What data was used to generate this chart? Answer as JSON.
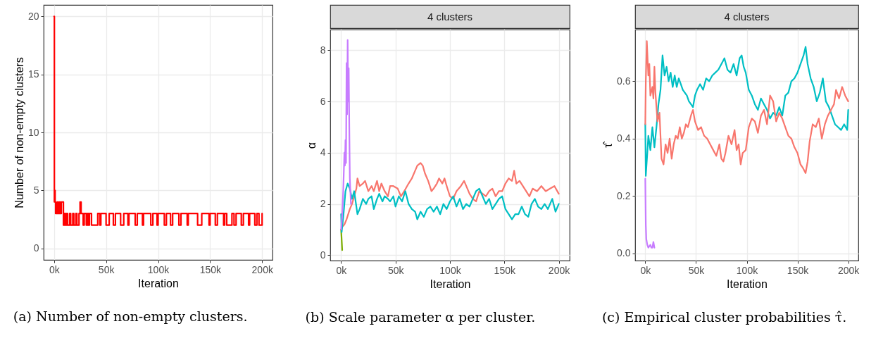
{
  "chart_data": [
    {
      "type": "step",
      "xlabel": "Iteration",
      "ylabel": "Number of non-empty clusters",
      "annotations": [
        "(a) Number of non-empty clusters."
      ],
      "xlim": [
        -10,
        210
      ],
      "xticks": [
        {
          "value": 0,
          "label": "0k"
        },
        {
          "value": 50,
          "label": "50k"
        },
        {
          "value": 100,
          "label": "100k"
        },
        {
          "value": 150,
          "label": "150k"
        },
        {
          "value": 200,
          "label": "200k"
        }
      ],
      "ylim": [
        -1,
        21
      ],
      "yticks": [
        0,
        5,
        10,
        15,
        20
      ],
      "grid": true,
      "series": [
        {
          "color": "#ff0000",
          "x": [
            0,
            0.3,
            0.6,
            1,
            1.5,
            3,
            4,
            5,
            6,
            7,
            9,
            10,
            11,
            12,
            13,
            15,
            16,
            18,
            19,
            21,
            22,
            24,
            25,
            26,
            28,
            29,
            31,
            32,
            33,
            34,
            36,
            42,
            44,
            45,
            50,
            53,
            57,
            59,
            64,
            67,
            71,
            72,
            78,
            80,
            85,
            86,
            93,
            95,
            99,
            100,
            106,
            108,
            112,
            114,
            120,
            122,
            128,
            129,
            138,
            142,
            149,
            150,
            155,
            157,
            163,
            164,
            166,
            170,
            171,
            173,
            175,
            180,
            182,
            187,
            188,
            193,
            195,
            197,
            200
          ],
          "values": [
            20,
            4,
            5,
            4,
            3,
            4,
            3,
            4,
            3,
            4,
            2,
            3,
            2,
            3,
            2,
            3,
            2,
            3,
            2,
            3,
            2,
            3,
            4,
            3,
            2,
            3,
            2,
            3,
            2,
            3,
            2,
            3,
            2,
            3,
            2,
            3,
            2,
            3,
            2,
            3,
            2,
            3,
            2,
            3,
            2,
            3,
            2,
            3,
            2,
            3,
            2,
            3,
            2,
            3,
            2,
            3,
            2,
            3,
            2,
            3,
            2,
            3,
            2,
            3,
            2,
            3,
            2,
            2,
            3,
            2,
            3,
            2,
            3,
            2,
            3,
            2,
            3,
            2,
            3
          ]
        }
      ]
    },
    {
      "type": "line",
      "subtitle": "4 clusters",
      "xlabel": "Iteration",
      "ylabel": "α",
      "annotations": [
        "(b) Scale parameter α per cluster."
      ],
      "xlim": [
        -10,
        210
      ],
      "xticks": [
        {
          "value": 0,
          "label": "0k"
        },
        {
          "value": 50,
          "label": "50k"
        },
        {
          "value": 100,
          "label": "100k"
        },
        {
          "value": 150,
          "label": "150k"
        },
        {
          "value": 200,
          "label": "200k"
        }
      ],
      "ylim": [
        -0.21,
        8.81
      ],
      "yticks": [
        0,
        2,
        4,
        6,
        8
      ],
      "grid": true,
      "series": [
        {
          "color": "#f8766d",
          "x": [
            0,
            1,
            3,
            5,
            8,
            10,
            12,
            14,
            15,
            17,
            20,
            22,
            25,
            28,
            30,
            33,
            35,
            37,
            40,
            43,
            45,
            48,
            52,
            55,
            58,
            62,
            65,
            68,
            70,
            73,
            75,
            77,
            80,
            83,
            85,
            88,
            90,
            93,
            95,
            97,
            100,
            103,
            106,
            110,
            113,
            115,
            118,
            121,
            124,
            127,
            130,
            133,
            136,
            139,
            142,
            145,
            148,
            151,
            154,
            157,
            159,
            161,
            164,
            167,
            170,
            173,
            176,
            180,
            184,
            188,
            192,
            196,
            200
          ],
          "values": [
            1.0,
            1.1,
            1.2,
            1.4,
            1.8,
            2.0,
            2.3,
            2.6,
            3.0,
            2.7,
            2.8,
            2.9,
            2.5,
            2.7,
            2.5,
            2.9,
            2.5,
            2.8,
            2.5,
            2.3,
            2.7,
            2.7,
            2.6,
            2.3,
            2.5,
            2.8,
            3.0,
            3.3,
            3.5,
            3.6,
            3.5,
            3.2,
            2.9,
            2.5,
            2.6,
            2.8,
            3.0,
            2.8,
            3.0,
            2.7,
            2.3,
            2.2,
            2.5,
            2.7,
            2.9,
            2.7,
            2.4,
            2.2,
            2.1,
            2.5,
            2.4,
            2.3,
            2.5,
            2.6,
            2.3,
            2.5,
            2.5,
            2.8,
            3.0,
            2.9,
            3.3,
            2.8,
            2.9,
            2.7,
            2.5,
            2.3,
            2.6,
            2.5,
            2.7,
            2.5,
            2.6,
            2.7,
            2.4
          ]
        },
        {
          "color": "#7cae00",
          "x": [
            0,
            0.5,
            1
          ],
          "values": [
            1.0,
            0.6,
            0.2
          ]
        },
        {
          "color": "#00bfc4",
          "x": [
            0,
            0.5,
            2,
            4,
            6,
            8,
            10,
            12,
            15,
            17,
            20,
            23,
            25,
            28,
            30,
            33,
            35,
            38,
            40,
            43,
            45,
            48,
            50,
            53,
            56,
            59,
            62,
            65,
            68,
            70,
            73,
            76,
            79,
            82,
            85,
            88,
            91,
            94,
            97,
            100,
            103,
            106,
            109,
            112,
            115,
            118,
            121,
            124,
            127,
            130,
            133,
            136,
            139,
            142,
            145,
            148,
            151,
            154,
            157,
            160,
            163,
            166,
            169,
            172,
            175,
            178,
            181,
            184,
            187,
            190,
            194,
            197,
            200
          ],
          "values": [
            1.6,
            0.9,
            1.5,
            2.5,
            2.8,
            2.6,
            2.2,
            2.5,
            1.6,
            1.8,
            2.2,
            2.0,
            2.2,
            2.3,
            1.8,
            2.2,
            2.4,
            2.1,
            2.3,
            2.2,
            2.1,
            2.3,
            1.9,
            2.3,
            2.1,
            2.5,
            2.0,
            1.8,
            1.7,
            1.4,
            1.7,
            1.5,
            1.8,
            1.9,
            1.7,
            1.9,
            1.6,
            2.0,
            1.8,
            2.1,
            2.3,
            1.9,
            2.2,
            1.8,
            2.0,
            1.9,
            2.2,
            2.5,
            2.6,
            2.3,
            2.0,
            2.2,
            1.8,
            2.0,
            2.2,
            2.3,
            1.8,
            1.6,
            1.4,
            1.6,
            1.6,
            1.9,
            1.6,
            1.5,
            2.0,
            2.2,
            1.9,
            1.8,
            2.0,
            1.8,
            2.2,
            1.7,
            2.0
          ]
        },
        {
          "color": "#c77cff",
          "x": [
            0,
            1,
            2,
            3,
            3.5,
            4,
            4.5,
            5,
            5.5,
            6,
            6.5,
            7,
            7.5,
            8,
            9
          ],
          "values": [
            1.0,
            1.6,
            2.6,
            4.0,
            3.5,
            4.5,
            3.6,
            7.5,
            5.5,
            8.4,
            6.0,
            7.3,
            5.0,
            3.0,
            2.0
          ]
        }
      ]
    },
    {
      "type": "line",
      "subtitle": "4 clusters",
      "xlabel": "Iteration",
      "ylabel": "τ̂",
      "annotations": [
        "(c) Empirical cluster probabilities τ̂."
      ],
      "xlim": [
        -10,
        210
      ],
      "xticks": [
        {
          "value": 0,
          "label": "0k"
        },
        {
          "value": 50,
          "label": "50k"
        },
        {
          "value": 100,
          "label": "100k"
        },
        {
          "value": 150,
          "label": "150k"
        },
        {
          "value": 200,
          "label": "200k"
        }
      ],
      "ylim": [
        -0.025,
        0.78
      ],
      "yticks": [
        {
          "value": 0,
          "label": "0.0"
        },
        0.2,
        0.4,
        0.6
      ],
      "grid": true,
      "series": [
        {
          "color": "#00bfc4",
          "x": [
            0,
            0.5,
            2,
            3,
            5,
            7,
            9,
            11,
            13,
            15,
            17,
            19,
            21,
            23,
            25,
            27,
            29,
            31,
            33,
            35,
            37,
            39,
            41,
            43,
            45,
            47,
            49,
            51,
            54,
            57,
            60,
            63,
            66,
            69,
            72,
            75,
            78,
            81,
            84,
            87,
            90,
            93,
            95,
            97,
            99,
            102,
            105,
            108,
            111,
            114,
            117,
            120,
            123,
            126,
            129,
            132,
            135,
            138,
            141,
            144,
            147,
            150,
            153,
            156,
            158,
            160,
            163,
            166,
            169,
            172,
            175,
            178,
            181,
            184,
            187,
            190,
            193,
            196,
            199,
            200
          ],
          "values": [
            0.45,
            0.27,
            0.35,
            0.41,
            0.36,
            0.44,
            0.37,
            0.44,
            0.52,
            0.57,
            0.69,
            0.62,
            0.65,
            0.6,
            0.63,
            0.58,
            0.62,
            0.58,
            0.61,
            0.59,
            0.57,
            0.56,
            0.55,
            0.53,
            0.52,
            0.51,
            0.55,
            0.57,
            0.59,
            0.57,
            0.61,
            0.6,
            0.62,
            0.63,
            0.64,
            0.66,
            0.68,
            0.64,
            0.63,
            0.66,
            0.62,
            0.68,
            0.69,
            0.65,
            0.63,
            0.57,
            0.55,
            0.52,
            0.5,
            0.54,
            0.52,
            0.5,
            0.47,
            0.49,
            0.48,
            0.51,
            0.48,
            0.55,
            0.56,
            0.6,
            0.61,
            0.63,
            0.66,
            0.69,
            0.72,
            0.66,
            0.61,
            0.58,
            0.53,
            0.56,
            0.61,
            0.53,
            0.51,
            0.48,
            0.45,
            0.44,
            0.43,
            0.45,
            0.43,
            0.5
          ]
        },
        {
          "color": "#f8766d",
          "x": [
            0,
            0.5,
            1.5,
            3,
            4,
            5,
            7,
            8,
            9,
            10,
            12,
            14,
            16,
            18,
            20,
            22,
            24,
            26,
            28,
            30,
            32,
            34,
            36,
            38,
            40,
            42,
            45,
            47,
            49,
            52,
            55,
            58,
            61,
            64,
            67,
            70,
            73,
            75,
            77,
            79,
            82,
            85,
            88,
            90,
            92,
            94,
            96,
            99,
            102,
            105,
            108,
            111,
            114,
            117,
            120,
            123,
            126,
            129,
            132,
            135,
            138,
            141,
            144,
            147,
            150,
            153,
            155,
            158,
            160,
            162,
            165,
            168,
            171,
            174,
            177,
            180,
            183,
            186,
            188,
            191,
            194,
            197,
            200
          ],
          "values": [
            0.45,
            0.6,
            0.74,
            0.62,
            0.66,
            0.55,
            0.58,
            0.54,
            0.65,
            0.56,
            0.46,
            0.49,
            0.33,
            0.31,
            0.38,
            0.35,
            0.4,
            0.33,
            0.38,
            0.41,
            0.4,
            0.44,
            0.4,
            0.42,
            0.45,
            0.44,
            0.48,
            0.5,
            0.46,
            0.43,
            0.44,
            0.41,
            0.4,
            0.38,
            0.36,
            0.34,
            0.38,
            0.33,
            0.32,
            0.35,
            0.41,
            0.38,
            0.43,
            0.36,
            0.38,
            0.31,
            0.35,
            0.36,
            0.44,
            0.47,
            0.46,
            0.42,
            0.48,
            0.5,
            0.45,
            0.55,
            0.53,
            0.46,
            0.49,
            0.47,
            0.44,
            0.41,
            0.4,
            0.37,
            0.35,
            0.31,
            0.3,
            0.28,
            0.32,
            0.39,
            0.45,
            0.44,
            0.47,
            0.4,
            0.45,
            0.48,
            0.5,
            0.52,
            0.57,
            0.54,
            0.58,
            0.55,
            0.53
          ]
        },
        {
          "color": "#c77cff",
          "x": [
            0,
            0.5,
            1,
            2,
            3,
            5,
            6,
            7,
            8,
            9
          ],
          "values": [
            0.26,
            0.1,
            0.05,
            0.03,
            0.02,
            0.03,
            0.02,
            0.02,
            0.04,
            0.02
          ]
        }
      ]
    }
  ]
}
